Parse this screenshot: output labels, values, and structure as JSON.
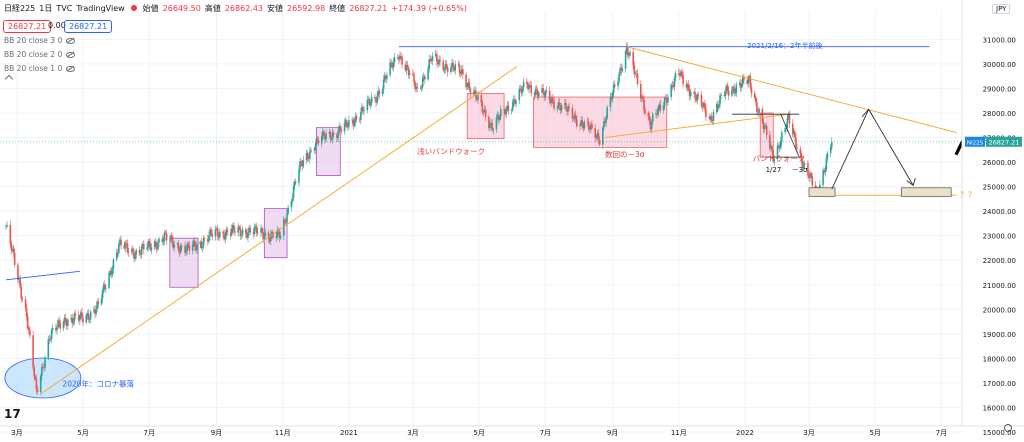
{
  "header": {
    "symbol": "日経225",
    "interval": "1日",
    "source": "TVC",
    "platform": "TradingView",
    "open_label": "始値",
    "open": "26649.50",
    "high_label": "高値",
    "high": "26862.43",
    "low_label": "安値",
    "low": "26592.98",
    "close_label": "終値",
    "close": "26827.21",
    "change": "+174.39 (+0.65%)"
  },
  "pills": {
    "sell": "26827.21",
    "spread": "0.00",
    "buy": "26827.21"
  },
  "indicators": [
    "BB 20 close 3 0",
    "BB 20 close 2 0",
    "BB 20 close 1 0"
  ],
  "currency": "JPY",
  "price_label": {
    "symbol": "NI225",
    "value": "26827.21"
  },
  "colors": {
    "up": "#26a69a",
    "down": "#ef5350",
    "trend": "#f5a623",
    "blue_line": "#2962ff",
    "annotation": "#e53935",
    "price_tag": "#26a69a"
  },
  "icons": [
    "tradingview-logo-icon",
    "eye-icon",
    "chevron-up-icon",
    "settings-gear-icon"
  ],
  "chart_data": {
    "type": "candlestick",
    "title": "",
    "y_axis_ticks": [
      15000,
      16000,
      17000,
      18000,
      19000,
      20000,
      21000,
      22000,
      23000,
      24000,
      25000,
      26000,
      27000,
      28000,
      29000,
      30000,
      31000
    ],
    "y_range": [
      15000,
      31300
    ],
    "x_axis_ticks": [
      "3月",
      "5月",
      "7月",
      "9月",
      "11月",
      "2021",
      "3月",
      "5月",
      "7月",
      "9月",
      "11月",
      "2022",
      "3月",
      "5月",
      "7月"
    ],
    "x_range": [
      "2020-02-20",
      "2022-07-20"
    ],
    "last_price": 26827.21,
    "approximate_daily_closes": [
      [
        "2020-02-20",
        23400
      ],
      [
        "2020-03-02",
        21300
      ],
      [
        "2020-03-10",
        19800
      ],
      [
        "2020-03-19",
        16550
      ],
      [
        "2020-03-31",
        18900
      ],
      [
        "2020-04-15",
        19600
      ],
      [
        "2020-04-30",
        19600
      ],
      [
        "2020-05-15",
        20100
      ],
      [
        "2020-06-03",
        22600
      ],
      [
        "2020-06-20",
        22300
      ],
      [
        "2020-07-15",
        22900
      ],
      [
        "2020-08-05",
        22400
      ],
      [
        "2020-08-31",
        23100
      ],
      [
        "2020-09-30",
        23200
      ],
      [
        "2020-10-30",
        22950
      ],
      [
        "2020-11-15",
        25600
      ],
      [
        "2020-12-01",
        26800
      ],
      [
        "2020-12-30",
        27450
      ],
      [
        "2021-01-25",
        28600
      ],
      [
        "2021-02-16",
        30450
      ],
      [
        "2021-03-05",
        28900
      ],
      [
        "2021-03-18",
        30200
      ],
      [
        "2021-04-15",
        29650
      ],
      [
        "2021-05-13",
        27450
      ],
      [
        "2021-06-14",
        29150
      ],
      [
        "2021-07-15",
        28300
      ],
      [
        "2021-08-20",
        27000
      ],
      [
        "2021-09-14",
        30650
      ],
      [
        "2021-10-06",
        27500
      ],
      [
        "2021-11-01",
        29600
      ],
      [
        "2021-11-30",
        27800
      ],
      [
        "2021-12-15",
        28900
      ],
      [
        "2022-01-05",
        29300
      ],
      [
        "2022-01-27",
        26200
      ],
      [
        "2022-02-10",
        27700
      ],
      [
        "2022-02-24",
        25900
      ],
      [
        "2022-03-08",
        24700
      ],
      [
        "2022-03-22",
        26827
      ]
    ],
    "lines": [
      {
        "name": "blue-resistance",
        "from": [
          "2021-02-16",
          30700
        ],
        "to": [
          "2022-06-20",
          30700
        ]
      },
      {
        "name": "blue-short",
        "from": [
          "2020-02-20",
          21200
        ],
        "to": [
          "2020-04-28",
          21550
        ]
      },
      {
        "name": "orange-uptrend",
        "from": [
          "2020-03-23",
          16550
        ],
        "to": [
          "2021-06-05",
          29900
        ]
      },
      {
        "name": "orange-downtrend",
        "from": [
          "2021-09-14",
          30700
        ],
        "to": [
          "2022-07-15",
          27200
        ]
      },
      {
        "name": "orange-midline",
        "from": [
          "2021-08-25",
          27000
        ],
        "to": [
          "2022-02-10",
          27950
        ]
      }
    ],
    "annotations": [
      "2021/2/16：2年半前後",
      "浅いバンドウォーク",
      "数回の－3σ",
      "バンドウォーク",
      "1/27",
      "－3σ",
      "2020年：コロナ暴落",
      "？？"
    ],
    "grid": true
  }
}
